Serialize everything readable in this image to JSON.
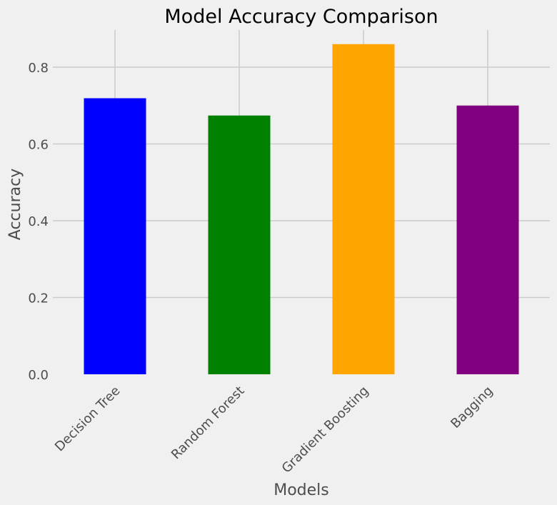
{
  "chart_data": {
    "type": "bar",
    "title": "Model Accuracy Comparison",
    "xlabel": "Models",
    "ylabel": "Accuracy",
    "categories": [
      "Decision Tree",
      "Random Forest",
      "Gradient Boosting",
      "Bagging"
    ],
    "values": [
      0.719,
      0.674,
      0.86,
      0.7
    ],
    "colors": [
      "#0000ff",
      "#008000",
      "#ffa500",
      "#800080"
    ],
    "ylim": [
      0,
      0.9
    ],
    "yticks": [
      "0.0",
      "0.2",
      "0.4",
      "0.6",
      "0.8"
    ],
    "ytick_values": [
      0,
      0.2,
      0.4,
      0.6,
      0.8
    ],
    "grid": true,
    "background": "#f0f0f0",
    "grid_color": "#cbcbcb",
    "style": "fivethirtyeight"
  }
}
